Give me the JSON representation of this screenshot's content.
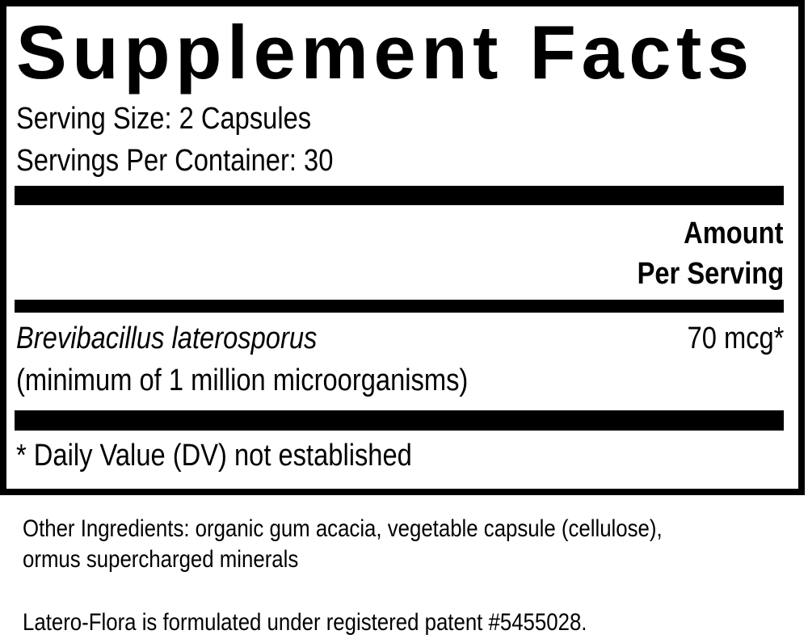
{
  "title": "Supplement Facts",
  "serving_size": "Serving Size: 2 Capsules",
  "servings_per_container": "Servings Per Container: 30",
  "amount_header": [
    "Amount",
    "Per Serving"
  ],
  "ingredients": [
    {
      "name": "Brevibacillus laterosporus",
      "note": "(minimum of 1 million microorganisms)",
      "amount": "70 mcg*"
    }
  ],
  "dv_note": "* Daily Value (DV) not established",
  "other_ingredients": [
    "Other Ingredients: organic gum acacia, vegetable capsule (cellulose),",
    "ormus supercharged minerals"
  ],
  "patent_note": "Latero-Flora is formulated under registered patent #5455028."
}
